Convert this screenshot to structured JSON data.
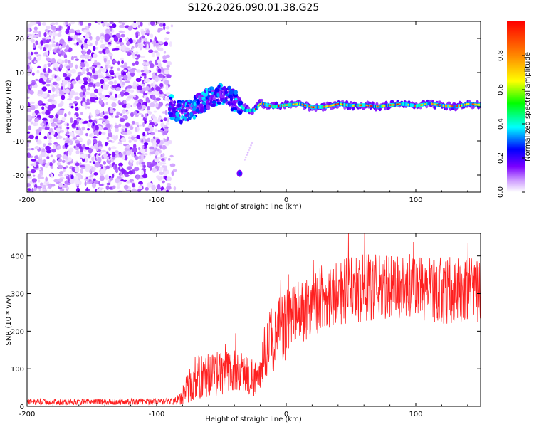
{
  "title": "S126.2026.090.01.38.G25",
  "chart_data": [
    {
      "type": "heatmap",
      "title": "S126.2026.090.01.38.G25",
      "xlabel": "Height of straight line (km)",
      "ylabel": "Frequency (Hz)",
      "xlim": [
        -200,
        150
      ],
      "ylim": [
        -25,
        25
      ],
      "xticks": [
        -200,
        -100,
        0,
        100
      ],
      "yticks": [
        -20,
        -10,
        0,
        10,
        20
      ],
      "colorbar": {
        "label": "Normalized spectral amplitude",
        "range": [
          0,
          1
        ],
        "ticks": [
          "0.0",
          "0.2",
          "0.4",
          "0.6",
          "0.8"
        ],
        "colors": [
          "#ffffff",
          "#cc99ff",
          "#7b00ff",
          "#0000ff",
          "#00ffff",
          "#00ff00",
          "#ffff00",
          "#ff8800",
          "#ff0000"
        ]
      },
      "noise_region_km": [
        -200,
        -90
      ],
      "signal_ridge": [
        {
          "x": -88,
          "y": -1.0
        },
        {
          "x": -80,
          "y": -1.5
        },
        {
          "x": -70,
          "y": 0.0
        },
        {
          "x": -60,
          "y": 2.5
        },
        {
          "x": -50,
          "y": 3.5
        },
        {
          "x": -45,
          "y": 3.0
        },
        {
          "x": -38,
          "y": 1.0
        },
        {
          "x": -32,
          "y": -1.2
        },
        {
          "x": -25,
          "y": -1.0
        },
        {
          "x": -20,
          "y": 1.0
        },
        {
          "x": -10,
          "y": 0.0
        },
        {
          "x": 0,
          "y": 0.5
        },
        {
          "x": 10,
          "y": 0.8
        },
        {
          "x": 20,
          "y": -0.2
        },
        {
          "x": 30,
          "y": 0.0
        },
        {
          "x": 40,
          "y": 0.8
        },
        {
          "x": 50,
          "y": 0.3
        },
        {
          "x": 60,
          "y": 0.5
        },
        {
          "x": 70,
          "y": 0.0
        },
        {
          "x": 80,
          "y": 0.5
        },
        {
          "x": 90,
          "y": 0.8
        },
        {
          "x": 100,
          "y": 0.2
        },
        {
          "x": 110,
          "y": 1.0
        },
        {
          "x": 120,
          "y": 0.3
        },
        {
          "x": 130,
          "y": 0.0
        },
        {
          "x": 140,
          "y": 0.8
        },
        {
          "x": 150,
          "y": 0.5
        }
      ],
      "isolated_blob": {
        "x": -36,
        "y": -19.5
      }
    },
    {
      "type": "line",
      "series_color": "#ff2020",
      "xlabel": "Height of straight line (km)",
      "ylabel": "SNR (10 * v/v)",
      "xlim": [
        -200,
        150
      ],
      "ylim": [
        0,
        460
      ],
      "xticks": [
        -200,
        -100,
        0,
        100
      ],
      "yticks": [
        0,
        100,
        200,
        300,
        400
      ],
      "series": [
        {
          "name": "SNR",
          "x": [
            -200,
            -150,
            -100,
            -85,
            -78,
            -70,
            -60,
            -50,
            -40,
            -30,
            -20,
            -18,
            -15,
            -10,
            -5,
            0,
            5,
            10,
            20,
            30,
            40,
            50,
            60,
            80,
            100,
            120,
            140,
            150
          ],
          "mean": [
            12,
            12,
            13,
            14,
            40,
            75,
            85,
            90,
            95,
            85,
            70,
            130,
            160,
            180,
            200,
            215,
            230,
            250,
            275,
            295,
            305,
            310,
            315,
            315,
            315,
            310,
            305,
            300
          ],
          "spread": [
            8,
            8,
            8,
            10,
            35,
            60,
            60,
            60,
            60,
            55,
            50,
            70,
            80,
            90,
            95,
            95,
            90,
            90,
            90,
            90,
            90,
            90,
            90,
            90,
            90,
            90,
            90,
            90
          ]
        }
      ]
    }
  ]
}
